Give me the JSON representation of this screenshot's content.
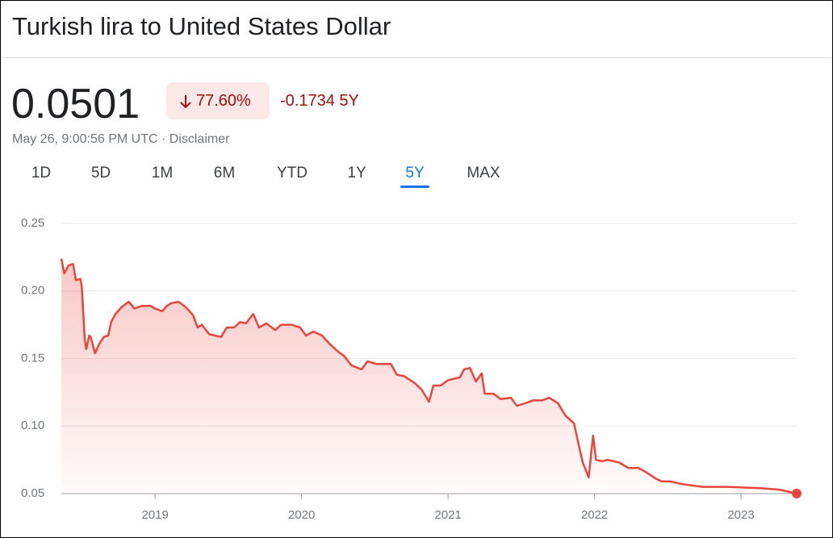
{
  "header": {
    "title": "Turkish lira to United States Dollar"
  },
  "quote": {
    "price": "0.0501",
    "change_percent": "77.60%",
    "change": "-0.1734",
    "range_label": "5Y",
    "timestamp": "May 26, 9:00:56 PM UTC",
    "separator": "·",
    "disclaimer": "Disclaimer"
  },
  "tabs": [
    "1D",
    "5D",
    "1M",
    "6M",
    "YTD",
    "1Y",
    "5Y",
    "MAX"
  ],
  "active_tab": 6,
  "chart_data": {
    "type": "line",
    "x": [
      2018.36,
      2018.38,
      2018.41,
      2018.44,
      2018.46,
      2018.49,
      2018.5,
      2018.52,
      2018.53,
      2018.55,
      2018.56,
      2018.59,
      2018.62,
      2018.65,
      2018.68,
      2018.7,
      2018.73,
      2018.77,
      2018.82,
      2018.86,
      2018.91,
      2018.97,
      2019.0,
      2019.05,
      2019.08,
      2019.11,
      2019.16,
      2019.21,
      2019.26,
      2019.29,
      2019.32,
      2019.37,
      2019.41,
      2019.45,
      2019.49,
      2019.54,
      2019.58,
      2019.62,
      2019.67,
      2019.71,
      2019.76,
      2019.82,
      2019.86,
      2019.93,
      2019.99,
      2020.03,
      2020.08,
      2020.14,
      2020.19,
      2020.25,
      2020.29,
      2020.34,
      2020.41,
      2020.45,
      2020.51,
      2020.61,
      2020.65,
      2020.7,
      2020.77,
      2020.82,
      2020.87,
      2020.9,
      2020.95,
      2021.0,
      2021.08,
      2021.11,
      2021.15,
      2021.19,
      2021.23,
      2021.25,
      2021.31,
      2021.36,
      2021.43,
      2021.47,
      2021.53,
      2021.58,
      2021.64,
      2021.69,
      2021.75,
      2021.8,
      2021.86,
      2021.89,
      2021.92,
      2021.96,
      2021.99,
      2022.01,
      2022.05,
      2022.09,
      2022.17,
      2022.23,
      2022.3,
      2022.35,
      2022.42,
      2022.46,
      2022.52,
      2022.6,
      2022.74,
      2022.91,
      2023.13,
      2023.26,
      2023.38
    ],
    "series": [
      {
        "color": "#e8453c",
        "values": [
          0.224,
          0.213,
          0.219,
          0.22,
          0.208,
          0.209,
          0.203,
          0.164,
          0.157,
          0.167,
          0.166,
          0.154,
          0.161,
          0.166,
          0.167,
          0.177,
          0.183,
          0.188,
          0.192,
          0.187,
          0.189,
          0.189,
          0.187,
          0.185,
          0.189,
          0.191,
          0.192,
          0.188,
          0.182,
          0.173,
          0.175,
          0.168,
          0.167,
          0.166,
          0.173,
          0.173,
          0.177,
          0.176,
          0.183,
          0.173,
          0.176,
          0.171,
          0.175,
          0.175,
          0.173,
          0.167,
          0.17,
          0.167,
          0.161,
          0.155,
          0.152,
          0.145,
          0.142,
          0.148,
          0.146,
          0.146,
          0.138,
          0.137,
          0.132,
          0.127,
          0.118,
          0.13,
          0.13,
          0.134,
          0.136,
          0.142,
          0.143,
          0.133,
          0.139,
          0.124,
          0.124,
          0.12,
          0.121,
          0.115,
          0.117,
          0.119,
          0.119,
          0.121,
          0.117,
          0.108,
          0.102,
          0.087,
          0.073,
          0.062,
          0.093,
          0.075,
          0.074,
          0.075,
          0.073,
          0.069,
          0.069,
          0.066,
          0.061,
          0.059,
          0.059,
          0.057,
          0.055,
          0.055,
          0.054,
          0.053,
          0.0501
        ]
      }
    ],
    "xlim": [
      2018.36,
      2023.38
    ],
    "xticks": [
      2019,
      2020,
      2021,
      2022,
      2023
    ],
    "ylim": [
      0.05,
      0.25
    ],
    "yticks": [
      0.25,
      {
        "value": 0.2,
        "label": "0.20"
      },
      0.15,
      {
        "value": 0.1,
        "label": "0.10"
      },
      0.05
    ],
    "grid": true
  }
}
